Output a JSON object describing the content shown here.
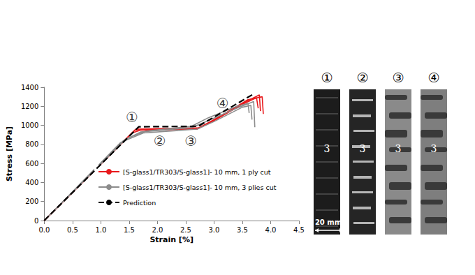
{
  "chart_data": {
    "type": "line",
    "xlabel": "Strain [%]",
    "ylabel": "Stress [MPa]",
    "xlim": [
      0,
      4.5
    ],
    "xticks": [
      {
        "value": 0,
        "label": "0.0"
      },
      0.5,
      {
        "value": 1,
        "label": "1.0"
      },
      1.5,
      {
        "value": 2,
        "label": "2.0"
      },
      2.5,
      {
        "value": 3,
        "label": "3.0"
      },
      3.5,
      {
        "value": 4,
        "label": "4.0"
      },
      4.5
    ],
    "ylim": [
      0,
      1400
    ],
    "yticks": [
      0,
      200,
      400,
      600,
      800,
      1000,
      1200,
      1400
    ],
    "grid": false,
    "legend": "lower left",
    "series": [
      {
        "name": "[S-glass1/TR303/S-glass1]- 10 mm, 1 ply cut",
        "color": "#e8191c",
        "line_style": "solid",
        "x": [
          0,
          1.6,
          1.7,
          2.7,
          3.0,
          3.5,
          3.8,
          3.82
        ],
        "values": [
          0,
          950,
          955,
          965,
          1060,
          1230,
          1320,
          1150
        ]
      },
      {
        "name": "[S-glass1/TR303/S-glass1]- 10 mm, 1 ply cut",
        "color": "#e8191c",
        "line_style": "solid",
        "x": [
          0,
          1.62,
          2.75,
          3.1,
          3.6,
          3.85,
          3.87
        ],
        "values": [
          0,
          960,
          975,
          1090,
          1270,
          1300,
          1120
        ]
      },
      {
        "name": "[S-glass1/TR303/S-glass1]- 10 mm, 1 ply cut",
        "color": "#e8191c",
        "line_style": "solid",
        "x": [
          0,
          1.55,
          1.7,
          2.7,
          3.0,
          3.5,
          3.75,
          3.78
        ],
        "values": [
          0,
          920,
          950,
          960,
          1050,
          1220,
          1290,
          1180
        ]
      },
      {
        "name": "[S-glass1/TR303/S-glass1]- 10 mm, 3 plies cut",
        "color": "#8c8c8c",
        "line_style": "solid",
        "x": [
          0,
          1.4,
          1.7,
          2.6,
          2.9,
          3.4,
          3.7,
          3.72
        ],
        "values": [
          0,
          840,
          930,
          975,
          1050,
          1180,
          1250,
          980
        ]
      },
      {
        "name": "[S-glass1/TR303/S-glass1]- 10 mm, 3 plies cut",
        "color": "#8c8c8c",
        "line_style": "solid",
        "x": [
          0,
          1.45,
          1.8,
          2.6,
          2.9,
          3.4,
          3.6,
          3.62
        ],
        "values": [
          0,
          860,
          940,
          990,
          1080,
          1200,
          1230,
          1130
        ]
      },
      {
        "name": "[S-glass1/TR303/S-glass1]- 10 mm, 3 plies cut",
        "color": "#8c8c8c",
        "line_style": "solid",
        "x": [
          0,
          1.35,
          1.75,
          2.7,
          3.0,
          3.5,
          3.65,
          3.67
        ],
        "values": [
          0,
          820,
          920,
          960,
          1040,
          1190,
          1210,
          1060
        ]
      },
      {
        "name": "Prediction",
        "color": "#000000",
        "line_style": "dashed",
        "x": [
          0,
          1.67,
          2.72,
          3.7
        ],
        "values": [
          0,
          985,
          990,
          1330
        ]
      }
    ],
    "annotations": [
      {
        "text": "①",
        "x": 1.55,
        "y": 1085
      },
      {
        "text": "②",
        "x": 2.04,
        "y": 836
      },
      {
        "text": "③",
        "x": 2.59,
        "y": 836
      },
      {
        "text": "④",
        "x": 3.15,
        "y": 1231
      }
    ]
  },
  "photos": {
    "panels": [
      {
        "label": "①",
        "mark": "3"
      },
      {
        "label": "②",
        "mark": "3"
      },
      {
        "label": "③",
        "mark": "3"
      },
      {
        "label": "④",
        "mark": "3"
      }
    ],
    "scale_bar": "20 mm"
  }
}
